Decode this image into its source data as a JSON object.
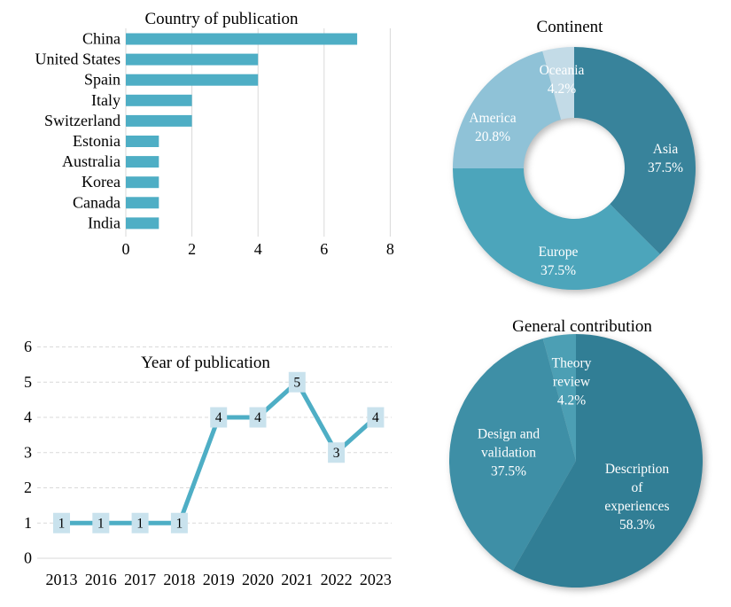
{
  "chart_data": [
    {
      "id": "country",
      "type": "bar",
      "title": "Country of publication",
      "orientation": "horizontal",
      "categories": [
        "China",
        "United States",
        "Spain",
        "Italy",
        "Switzerland",
        "Estonia",
        "Australia",
        "Korea",
        "Canada",
        "India"
      ],
      "values": [
        7,
        4,
        4,
        2,
        2,
        1,
        1,
        1,
        1,
        1
      ],
      "xlabel": "",
      "ylabel": "",
      "xlim": [
        0,
        8
      ],
      "xticks": [
        0,
        2,
        4,
        6,
        8
      ],
      "grid": "vertical",
      "bar_color": "#4EAEC5",
      "grid_color": "#D9D9D9",
      "text_color": "#000000"
    },
    {
      "id": "continent",
      "type": "pie",
      "subtype": "donut",
      "title": "Continent",
      "legend_position": "none",
      "slices": [
        {
          "label": "Asia",
          "pct": 37.5,
          "pct_label": "37.5%",
          "label_lines": [
            "Asia",
            "37.5%"
          ],
          "color": "#38839B"
        },
        {
          "label": "Europe",
          "pct": 37.5,
          "pct_label": "37.5%",
          "label_lines": [
            "Europe",
            "37.5%"
          ],
          "color": "#4CA5BB"
        },
        {
          "label": "America",
          "pct": 20.8,
          "pct_label": "20.8%",
          "label_lines": [
            "America",
            "20.8%"
          ],
          "color": "#8FC2D7"
        },
        {
          "label": "Oceania",
          "pct": 4.2,
          "pct_label": "4.2%",
          "label_lines": [
            "Oceania",
            "4.2%"
          ],
          "color": "#C3DBE7"
        }
      ],
      "label_color": "#FFFFFF"
    },
    {
      "id": "year",
      "type": "line",
      "title": "Year of publication",
      "categories": [
        "2013",
        "2016",
        "2017",
        "2018",
        "2019",
        "2020",
        "2021",
        "2022",
        "2023"
      ],
      "values": [
        1,
        1,
        1,
        1,
        4,
        4,
        5,
        3,
        4
      ],
      "xlabel": "",
      "ylabel": "",
      "ylim": [
        0,
        6
      ],
      "yticks": [
        0,
        1,
        2,
        3,
        4,
        5,
        6
      ],
      "grid": "horizontal-dashed",
      "data_labels": [
        "1",
        "1",
        "1",
        "1",
        "4",
        "4",
        "5",
        "3",
        "4"
      ],
      "line_color": "#4EAEC5",
      "marker_fill": "#C9E2ED",
      "grid_color": "#D9D9D9",
      "text_color": "#000000"
    },
    {
      "id": "contribution",
      "type": "pie",
      "subtype": "pie",
      "title": "General contribution",
      "legend_position": "none",
      "slices": [
        {
          "label": "Description of experiences",
          "pct": 58.3,
          "pct_label": "58.3%",
          "label_lines": [
            "Description",
            "of",
            "experiences",
            "58.3%"
          ],
          "color": "#317E95"
        },
        {
          "label": "Design and validation",
          "pct": 37.5,
          "pct_label": "37.5%",
          "label_lines": [
            "Design and",
            "validation",
            "37.5%"
          ],
          "color": "#3E8FA6"
        },
        {
          "label": "Theory review",
          "pct": 4.2,
          "pct_label": "4.2%",
          "label_lines": [
            "Theory",
            "review",
            "4.2%"
          ],
          "color": "#4C9FB4"
        }
      ],
      "label_color": "#FFFFFF"
    }
  ]
}
